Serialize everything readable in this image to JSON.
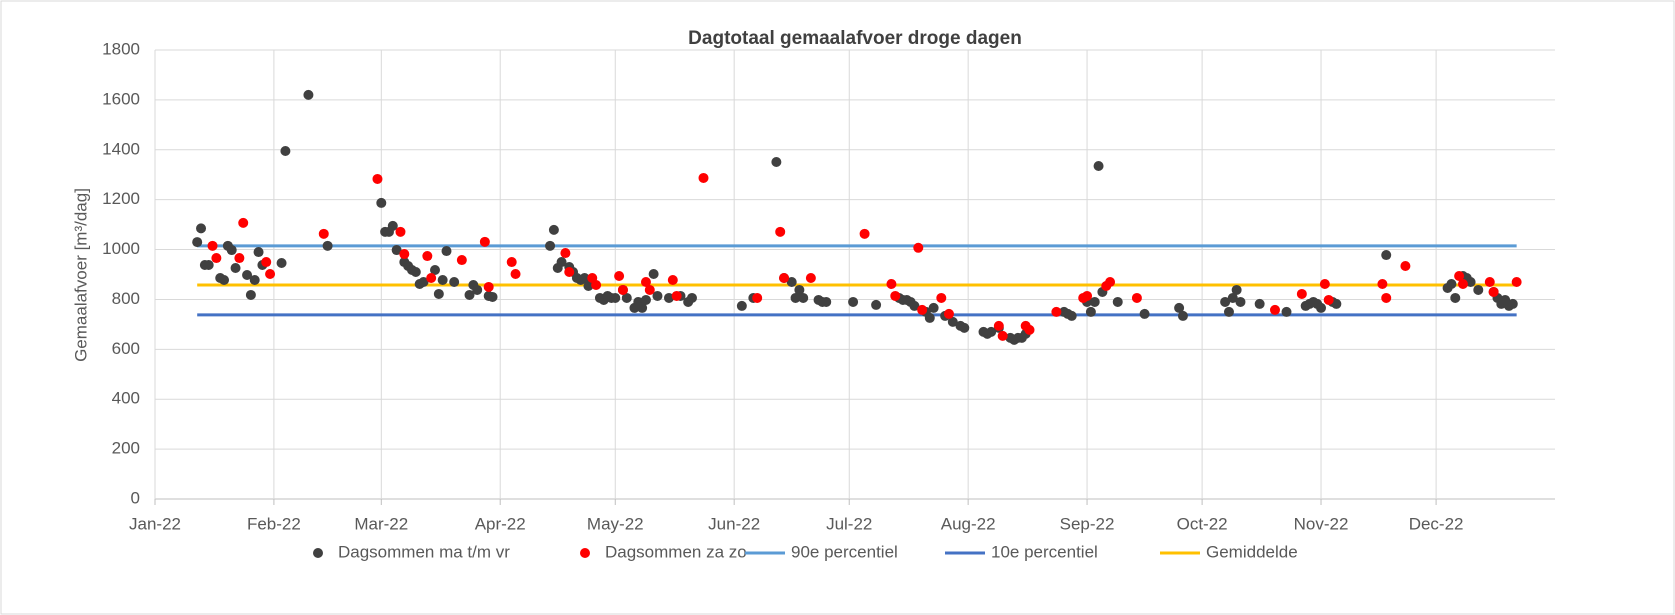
{
  "chart_data": {
    "type": "scatter",
    "title": "Dagtotaal gemaalafvoer droge dagen",
    "y_label": "Gemaalafvoer [m³/dag]",
    "xlim": [
      0,
      365
    ],
    "xticks": [
      {
        "value": 0,
        "label": "Jan-22"
      },
      {
        "value": 31,
        "label": "Feb-22"
      },
      {
        "value": 59,
        "label": "Mar-22"
      },
      {
        "value": 90,
        "label": "Apr-22"
      },
      {
        "value": 120,
        "label": "May-22"
      },
      {
        "value": 151,
        "label": "Jun-22"
      },
      {
        "value": 181,
        "label": "Jul-22"
      },
      {
        "value": 212,
        "label": "Aug-22"
      },
      {
        "value": 243,
        "label": "Sep-22"
      },
      {
        "value": 273,
        "label": "Oct-22"
      },
      {
        "value": 304,
        "label": "Nov-22"
      },
      {
        "value": 334,
        "label": "Dec-22"
      }
    ],
    "ylim": [
      0,
      1800
    ],
    "yticks": [
      0,
      200,
      400,
      600,
      800,
      1000,
      1200,
      1400,
      1600,
      1800
    ],
    "grid": true,
    "legend": "bottom",
    "series": [
      {
        "name": "Dagsommen ma t/m vr",
        "type": "scatter",
        "color": "#404040",
        "x": [
          11,
          12,
          13,
          14,
          17,
          18,
          19,
          20,
          21,
          24,
          25,
          26,
          27,
          28,
          33,
          34,
          40,
          45,
          59,
          60,
          61,
          62,
          63,
          65,
          66,
          67,
          68,
          69,
          70,
          73,
          74,
          75,
          76,
          78,
          82,
          83,
          84,
          87,
          88,
          103,
          104,
          105,
          106,
          108,
          109,
          110,
          111,
          112,
          113,
          116,
          117,
          118,
          119,
          120,
          122,
          123,
          125,
          126,
          127,
          128,
          130,
          131,
          134,
          137,
          139,
          140,
          153,
          156,
          162,
          164,
          166,
          167,
          168,
          169,
          173,
          174,
          175,
          182,
          188,
          194,
          195,
          196,
          197,
          198,
          201,
          202,
          203,
          206,
          208,
          210,
          211,
          216,
          217,
          218,
          220,
          223,
          224,
          225,
          226,
          227,
          237,
          238,
          239,
          243,
          244,
          245,
          246,
          247,
          251,
          258,
          267,
          268,
          279,
          280,
          281,
          282,
          283,
          288,
          295,
          300,
          301,
          302,
          303,
          304,
          307,
          308,
          321,
          337,
          338,
          339,
          341,
          342,
          343,
          345,
          349,
          350,
          351,
          352,
          353,
          354
        ],
        "values": [
          1030,
          1085,
          938,
          938,
          886,
          878,
          1015,
          998,
          926,
          898,
          818,
          878,
          990,
          938,
          946,
          1395,
          1620,
          1015,
          1187,
          1071,
          1071,
          1095,
          998,
          950,
          934,
          918,
          910,
          862,
          870,
          918,
          822,
          878,
          994,
          870,
          818,
          858,
          838,
          814,
          810,
          1015,
          1079,
          926,
          950,
          930,
          910,
          886,
          878,
          886,
          854,
          806,
          798,
          814,
          806,
          806,
          838,
          806,
          766,
          790,
          766,
          798,
          902,
          814,
          806,
          814,
          790,
          806,
          774,
          806,
          1351,
          886,
          870,
          806,
          838,
          806,
          798,
          790,
          790,
          790,
          778,
          806,
          798,
          798,
          790,
          774,
          750,
          726,
          766,
          734,
          710,
          694,
          686,
          670,
          662,
          670,
          686,
          646,
          638,
          646,
          646,
          662,
          750,
          742,
          734,
          790,
          750,
          790,
          1335,
          830,
          790,
          742,
          766,
          734,
          790,
          750,
          806,
          838,
          790,
          782,
          750,
          774,
          782,
          790,
          782,
          766,
          790,
          782,
          978,
          846,
          862,
          806,
          894,
          886,
          870,
          838,
          830,
          806,
          782,
          798,
          774,
          782
        ]
      },
      {
        "name": "Dagsommen za zo",
        "type": "scatter",
        "color": "#ff0000",
        "x": [
          15,
          16,
          22,
          23,
          29,
          30,
          44,
          58,
          64,
          65,
          71,
          72,
          80,
          86,
          87,
          93,
          94,
          107,
          108,
          114,
          115,
          121,
          122,
          128,
          129,
          135,
          136,
          143,
          157,
          163,
          164,
          171,
          185,
          192,
          193,
          199,
          200,
          205,
          207,
          220,
          221,
          227,
          228,
          235,
          242,
          243,
          248,
          249,
          256,
          292,
          299,
          305,
          306,
          320,
          321,
          326,
          340,
          341,
          348,
          349,
          355
        ],
        "values": [
          1015,
          966,
          966,
          1107,
          950,
          902,
          1063,
          1283,
          1071,
          982,
          974,
          886,
          958,
          1031,
          850,
          950,
          902,
          986,
          910,
          886,
          858,
          894,
          838,
          870,
          838,
          878,
          814,
          1287,
          806,
          1071,
          886,
          886,
          1063,
          862,
          814,
          1007,
          758,
          806,
          742,
          694,
          654,
          694,
          678,
          750,
          806,
          814,
          854,
          870,
          806,
          758,
          822,
          862,
          798,
          862,
          806,
          934,
          894,
          862,
          870,
          830,
          870
        ]
      },
      {
        "name": "90e percentiel",
        "type": "line",
        "color": "#5b9bd5",
        "x": [
          11,
          355
        ],
        "values": [
          1015,
          1015
        ]
      },
      {
        "name": "10e percentiel",
        "type": "line",
        "color": "#4472c4",
        "x": [
          11,
          355
        ],
        "values": [
          738,
          738
        ]
      },
      {
        "name": "Gemiddelde",
        "type": "line",
        "color": "#ffc000",
        "x": [
          11,
          355
        ],
        "values": [
          858,
          858
        ]
      }
    ]
  }
}
